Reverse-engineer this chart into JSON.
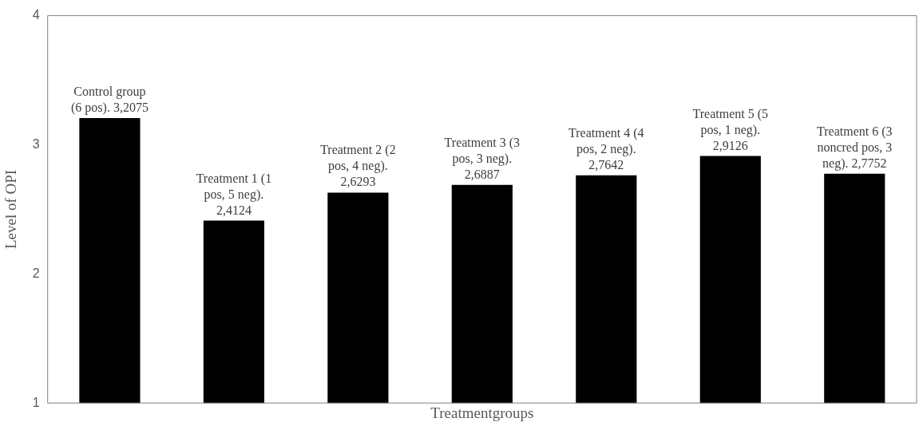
{
  "chart_data": {
    "type": "bar",
    "xlabel": "Treatmentgroups",
    "ylabel": "Level of OPI",
    "categories": [
      null,
      null,
      null,
      null,
      null,
      null,
      null
    ],
    "values": [
      3.2075,
      2.4124,
      2.6293,
      2.6887,
      2.7642,
      2.9126,
      2.7752
    ],
    "color": "#000000",
    "value_labels": [
      "Control group (6 pos). 3,2075",
      "Treatment 1 (1 pos, 5 neg). 2,4124",
      "Treatment 2 (2 pos, 4 neg). 2,6293",
      "Treatment 3 (3 pos, 3 neg). 2,6887",
      "Treatment 4 (4 pos, 2 neg). 2,7642",
      "Treatment 5 (5 pos, 1 neg). 2,9126",
      "Treatment 6 (3 noncred pos, 3 neg). 2,7752"
    ],
    "ylim": [
      1,
      4
    ],
    "yticks": [
      1,
      2,
      3,
      4
    ],
    "grid": false,
    "legend": false
  }
}
